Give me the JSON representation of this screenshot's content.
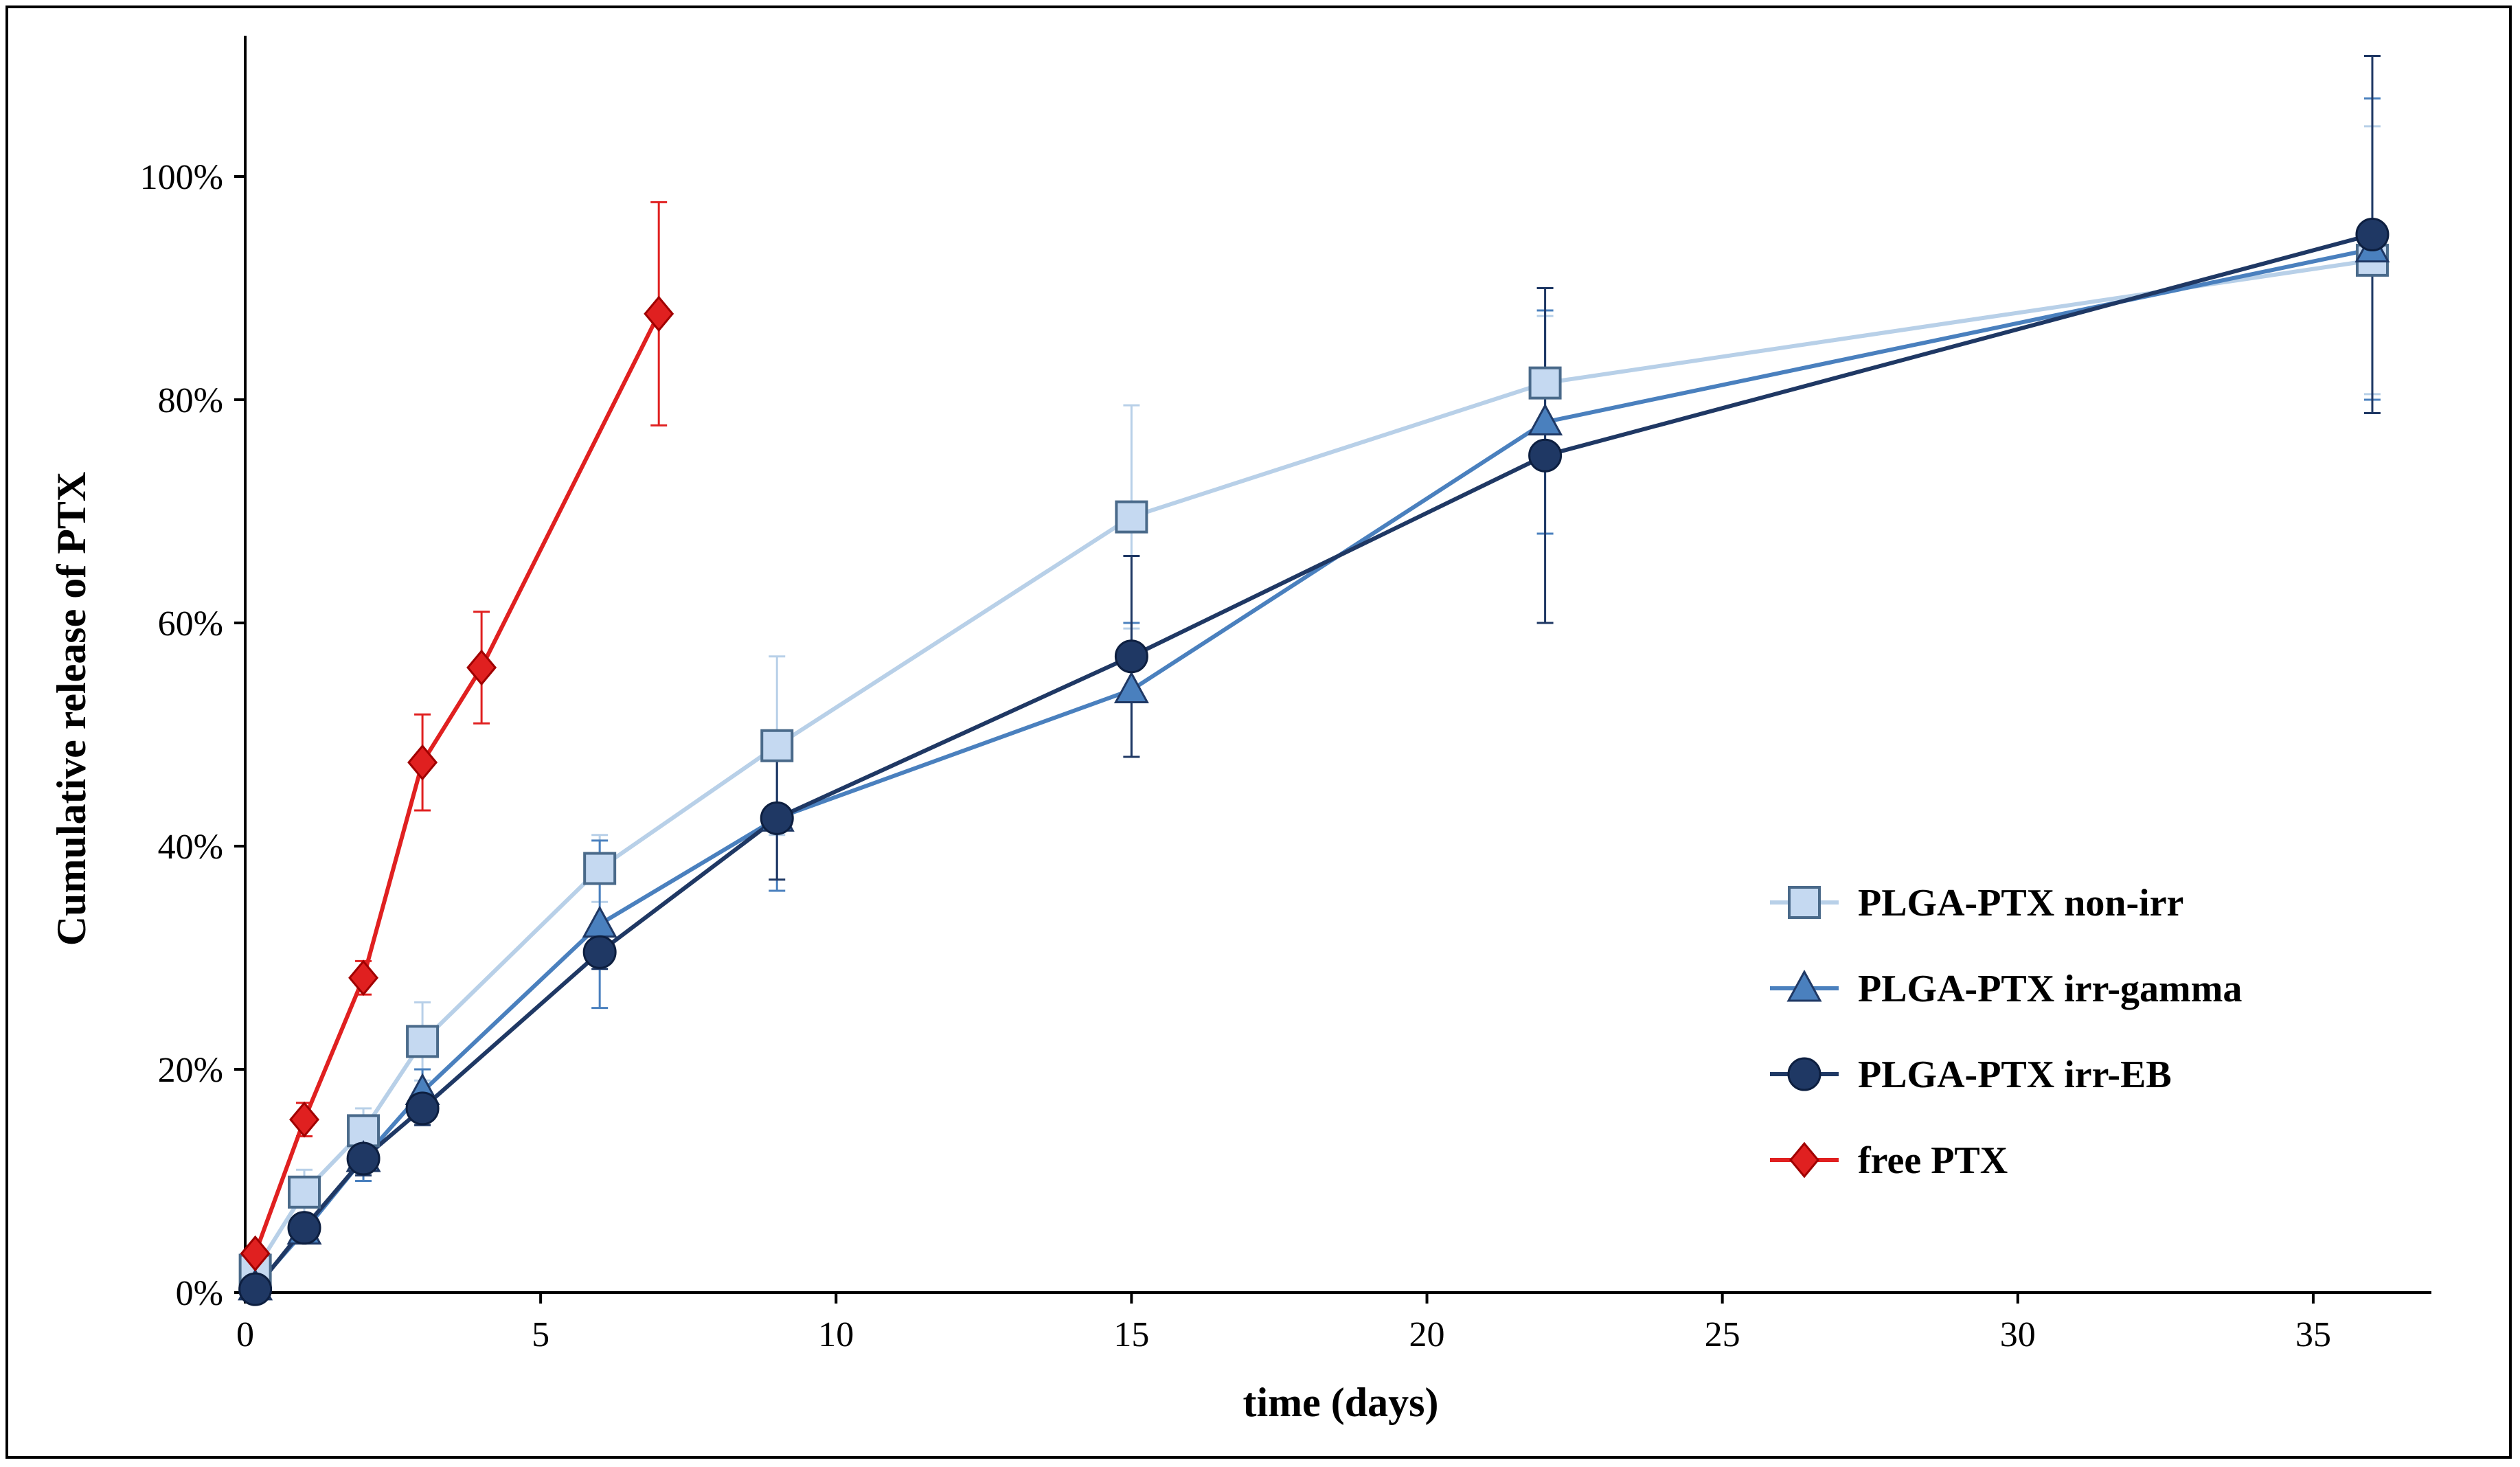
{
  "chart_data": {
    "type": "line",
    "title": "",
    "xlabel": "time (days)",
    "ylabel": "Cumulative release of PTX",
    "xlim": [
      0,
      37
    ],
    "ylim": [
      0,
      1.12
    ],
    "x_ticks": [
      0,
      5,
      10,
      15,
      20,
      25,
      30,
      35
    ],
    "y_ticks": [
      0,
      0.2,
      0.4,
      0.6,
      0.8,
      1.0
    ],
    "x_tick_labels": [
      "0",
      "5",
      "10",
      "15",
      "20",
      "25",
      "30",
      "35"
    ],
    "y_tick_labels": [
      "0%",
      "20%",
      "40%",
      "60%",
      "80%",
      "100%"
    ],
    "grid": false,
    "legend_position": "right",
    "series": [
      {
        "name": "PLGA-PTX non-irr",
        "marker": "square",
        "color": "#b8d0e8",
        "marker_fill": "#c5d9f1",
        "marker_stroke": "#4a6a8a",
        "x": [
          0.17,
          1,
          2,
          3,
          6,
          9,
          15,
          22,
          36
        ],
        "y": [
          0.02,
          0.09,
          0.145,
          0.225,
          0.38,
          0.49,
          0.695,
          0.815,
          0.925
        ],
        "err": [
          0.01,
          0.02,
          0.02,
          0.035,
          0.03,
          0.08,
          0.1,
          0.06,
          0.12
        ]
      },
      {
        "name": "PLGA-PTX irr-gamma",
        "marker": "triangle",
        "color": "#4a80be",
        "marker_fill": "#4a80be",
        "marker_stroke": "#1f3864",
        "x": [
          0.17,
          1,
          2,
          3,
          6,
          9,
          15,
          22,
          36
        ],
        "y": [
          0.005,
          0.055,
          0.12,
          0.18,
          0.33,
          0.425,
          0.54,
          0.78,
          0.935
        ],
        "err": [
          0.005,
          0.01,
          0.02,
          0.02,
          0.075,
          0.065,
          0.06,
          0.1,
          0.135
        ]
      },
      {
        "name": "PLGA-PTX irr-EB",
        "marker": "circle",
        "color": "#1f3864",
        "marker_fill": "#1f3864",
        "marker_stroke": "#0d1f40",
        "x": [
          0.17,
          1,
          2,
          3,
          6,
          9,
          15,
          22,
          36
        ],
        "y": [
          0.003,
          0.058,
          0.12,
          0.165,
          0.305,
          0.425,
          0.57,
          0.75,
          0.948
        ],
        "err": [
          0.003,
          0.01,
          0.015,
          0.015,
          0.015,
          0.055,
          0.09,
          0.15,
          0.16
        ]
      },
      {
        "name": "free PTX",
        "marker": "diamond",
        "color": "#e02020",
        "marker_fill": "#e02020",
        "marker_stroke": "#a00000",
        "x": [
          0.17,
          1,
          2,
          3,
          4,
          7
        ],
        "y": [
          0.035,
          0.155,
          0.282,
          0.475,
          0.56,
          0.877
        ],
        "err": [
          0.005,
          0.015,
          0.015,
          0.043,
          0.05,
          0.1
        ]
      }
    ]
  }
}
